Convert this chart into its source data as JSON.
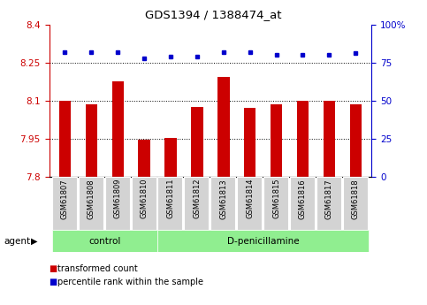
{
  "title": "GDS1394 / 1388474_at",
  "samples": [
    "GSM61807",
    "GSM61808",
    "GSM61809",
    "GSM61810",
    "GSM61811",
    "GSM61812",
    "GSM61813",
    "GSM61814",
    "GSM61815",
    "GSM61816",
    "GSM61817",
    "GSM61818"
  ],
  "bar_values": [
    8.1,
    8.085,
    8.175,
    7.945,
    7.955,
    8.075,
    8.195,
    8.07,
    8.085,
    8.1,
    8.1,
    8.085
  ],
  "percentile_values": [
    82,
    82,
    82,
    78,
    79,
    79,
    82,
    82,
    80,
    80,
    80,
    81
  ],
  "bar_color": "#cc0000",
  "dot_color": "#0000cc",
  "ylim_left": [
    7.8,
    8.4
  ],
  "ylim_right": [
    0,
    100
  ],
  "yticks_left": [
    7.8,
    7.95,
    8.1,
    8.25,
    8.4
  ],
  "yticks_left_labels": [
    "7.8",
    "7.95",
    "8.1",
    "8.25",
    "8.4"
  ],
  "yticks_right": [
    0,
    25,
    50,
    75,
    100
  ],
  "yticks_right_labels": [
    "0",
    "25",
    "50",
    "75",
    "100%"
  ],
  "hlines": [
    7.95,
    8.1,
    8.25
  ],
  "control_count": 4,
  "groups": [
    "control",
    "D-penicillamine"
  ],
  "group_color": "#90ee90",
  "bar_color_ctrl": "#cc0000",
  "bar_width": 0.45,
  "agent_label": "agent",
  "legend_labels": [
    "transformed count",
    "percentile rank within the sample"
  ],
  "legend_colors": [
    "#cc0000",
    "#0000cc"
  ],
  "tick_label_color_left": "#cc0000",
  "tick_label_color_right": "#0000cc",
  "background_color": "#ffffff"
}
